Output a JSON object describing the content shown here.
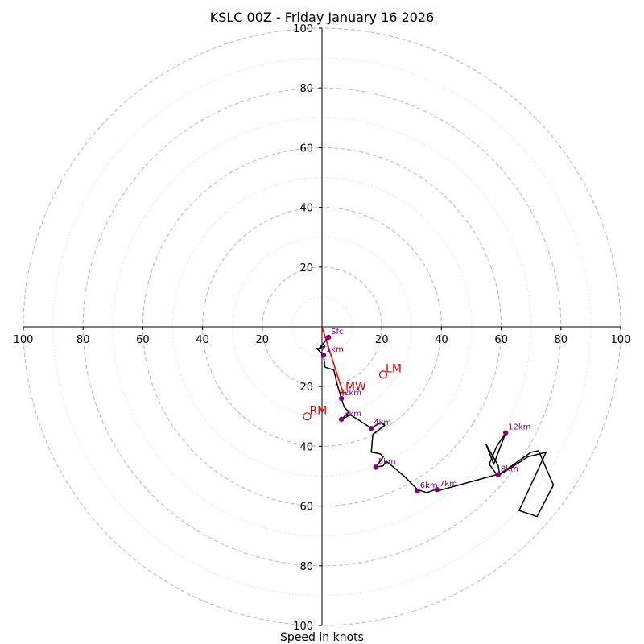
{
  "chart_data": {
    "type": "hodograph",
    "title": "KSLC 00Z - Friday January 16 2026",
    "xlabel": "Speed in knots",
    "range": [
      -100,
      100
    ],
    "ring_major_step": 20,
    "ring_minor_step": 10,
    "x_ticks": [
      {
        "value": -100,
        "label": "100"
      },
      {
        "value": -80,
        "label": "80"
      },
      {
        "value": -60,
        "label": "60"
      },
      {
        "value": -40,
        "label": "40"
      },
      {
        "value": -20,
        "label": "20"
      },
      {
        "value": 20,
        "label": "20"
      },
      {
        "value": 40,
        "label": "40"
      },
      {
        "value": 60,
        "label": "60"
      },
      {
        "value": 80,
        "label": "80"
      },
      {
        "value": 100,
        "label": "100"
      }
    ],
    "y_ticks": [
      {
        "value": 100,
        "label": "100"
      },
      {
        "value": 80,
        "label": "80"
      },
      {
        "value": 60,
        "label": "60"
      },
      {
        "value": 40,
        "label": "40"
      },
      {
        "value": 20,
        "label": "20"
      },
      {
        "value": -20,
        "label": "20"
      },
      {
        "value": -40,
        "label": "40"
      },
      {
        "value": -60,
        "label": "60"
      },
      {
        "value": -80,
        "label": "80"
      },
      {
        "value": -100,
        "label": "100"
      }
    ],
    "trace": [
      [
        2.2,
        -3.5
      ],
      [
        0.5,
        -5.5
      ],
      [
        -0.8,
        -7.0
      ],
      [
        1.0,
        -6.5
      ],
      [
        0.4,
        -7.5
      ],
      [
        -1.8,
        -7.2
      ],
      [
        0.5,
        -9.5
      ],
      [
        1.0,
        -13.5
      ],
      [
        4.0,
        -14.5
      ],
      [
        5.0,
        -19.0
      ],
      [
        6.5,
        -24.0
      ],
      [
        7.5,
        -27.0
      ],
      [
        9.0,
        -28.5
      ],
      [
        8.0,
        -29.5
      ],
      [
        6.5,
        -31.0
      ],
      [
        9.5,
        -29.5
      ],
      [
        12.0,
        -31.0
      ],
      [
        16.5,
        -34.0
      ],
      [
        18.0,
        -33.0
      ],
      [
        20.0,
        -32.0
      ],
      [
        21.0,
        -33.0
      ],
      [
        17.0,
        -36.0
      ],
      [
        16.5,
        -42.0
      ],
      [
        19.5,
        -42.5
      ],
      [
        20.5,
        -43.5
      ],
      [
        18.0,
        -47.0
      ],
      [
        20.5,
        -46.5
      ],
      [
        21.5,
        -45.0
      ],
      [
        24.0,
        -47.0
      ],
      [
        27.5,
        -50.0
      ],
      [
        32.0,
        -54.5
      ],
      [
        35.0,
        -55.5
      ],
      [
        38.0,
        -54.5
      ],
      [
        38.5,
        -55.0
      ],
      [
        58.5,
        -49.5
      ],
      [
        57.5,
        -48.0
      ],
      [
        56.0,
        -46.0
      ],
      [
        58.5,
        -40.0
      ],
      [
        61.5,
        -35.5
      ],
      [
        57.5,
        -46.0
      ],
      [
        55.0,
        -39.5
      ],
      [
        59.0,
        -46.5
      ],
      [
        59.5,
        -49.5
      ],
      [
        63.5,
        -47.0
      ],
      [
        69.0,
        -43.5
      ],
      [
        75.0,
        -42.0
      ],
      [
        66.0,
        -61.5
      ],
      [
        72.0,
        -63.5
      ],
      [
        77.5,
        -53.0
      ],
      [
        72.5,
        -41.5
      ],
      [
        70.0,
        -42.0
      ],
      [
        60.0,
        -49.0
      ],
      [
        59.5,
        -49.5
      ]
    ],
    "height_markers": [
      {
        "label": "Sfc",
        "u": 2.2,
        "v": -3.5
      },
      {
        "label": "1km",
        "u": 0.5,
        "v": -9.5
      },
      {
        "label": "2km",
        "u": 6.5,
        "v": -24.0
      },
      {
        "label": "3km",
        "u": 6.5,
        "v": -31.0
      },
      {
        "label": "4km",
        "u": 16.5,
        "v": -34.0
      },
      {
        "label": "5km",
        "u": 18.0,
        "v": -47.0
      },
      {
        "label": "6km",
        "u": 32.0,
        "v": -55.0
      },
      {
        "label": "7km",
        "u": 38.5,
        "v": -54.5
      },
      {
        "label": "8km",
        "u": 59.0,
        "v": -49.5
      },
      {
        "label": "12km",
        "u": 61.5,
        "v": -35.5
      }
    ],
    "motion_vectors": [
      {
        "label": "LM",
        "u": 20.5,
        "v": -16.0,
        "marker": "circle"
      },
      {
        "label": "MW",
        "u": 7.0,
        "v": -22.0,
        "marker": "plus"
      },
      {
        "label": "RM",
        "u": -5.0,
        "v": -30.0,
        "marker": "circle"
      }
    ],
    "shear_vector": {
      "from": [
        0,
        0
      ],
      "to": [
        7.0,
        -22.0
      ]
    },
    "colors": {
      "trace": "#000000",
      "marker": "#800080",
      "motion": "#cc0000",
      "shear": "#ff0000",
      "ring_major": "#bbbbbb",
      "ring_minor": "#dddddd",
      "axis": "#000000"
    }
  }
}
